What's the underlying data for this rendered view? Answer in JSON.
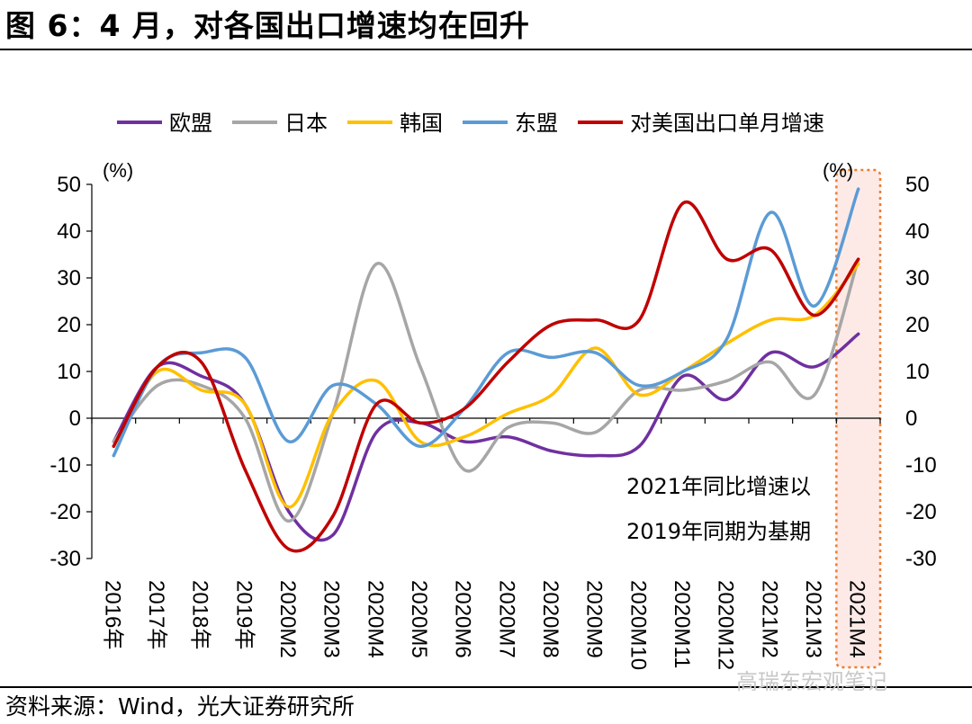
{
  "title": "图 6：4 月，对各国出口增速均在回升",
  "source": "资料来源：Wind，光大证券研究所",
  "watermark": "高瑞东宏观笔记",
  "chart_data": {
    "type": "line",
    "categories": [
      "2016年",
      "2017年",
      "2018年",
      "2019年",
      "2020M2",
      "2020M3",
      "2020M4",
      "2020M5",
      "2020M6",
      "2020M7",
      "2020M8",
      "2020M9",
      "2020M10",
      "2020M11",
      "2020M12",
      "2021M2",
      "2021M3",
      "2021M4"
    ],
    "series": [
      {
        "name": "欧盟",
        "color": "#7030a0",
        "values": [
          -5,
          11,
          9,
          3,
          -20,
          -25,
          -3,
          -1,
          -5,
          -4,
          -7,
          -8,
          -6,
          9,
          4,
          14,
          11,
          18
        ]
      },
      {
        "name": "日本",
        "color": "#a6a6a6",
        "values": [
          -5,
          7,
          7,
          0,
          -22,
          1,
          33,
          11,
          -11,
          -2,
          -1,
          -3,
          6,
          6,
          8,
          12,
          5,
          34
        ]
      },
      {
        "name": "韩国",
        "color": "#ffc000",
        "values": [
          -6,
          10,
          6,
          3,
          -19,
          1,
          8,
          -5,
          -4,
          1,
          5,
          15,
          5,
          10,
          16,
          21,
          22,
          33
        ]
      },
      {
        "name": "东盟",
        "color": "#5b9bd5",
        "values": [
          -8,
          11,
          14,
          13,
          -5,
          7,
          3,
          -6,
          2,
          14,
          13,
          14,
          7,
          10,
          17,
          44,
          24,
          49
        ]
      },
      {
        "name": "对美国出口单月增速",
        "color": "#c00000",
        "values": [
          -6,
          11,
          12,
          -11,
          -28,
          -21,
          3,
          -1,
          2,
          12,
          20,
          21,
          21,
          46,
          34,
          36,
          22,
          34
        ]
      }
    ],
    "ylim": [
      -30,
      50
    ],
    "yticks": [
      "50",
      "40",
      "30",
      "20",
      "10",
      "0",
      "-10",
      "-20",
      "-30"
    ],
    "left_unit": "(%)",
    "right_unit": "(%)",
    "annotation_lines": [
      "2021年同比增速以",
      "2019年同期为基期"
    ],
    "highlight_category": "2021M4",
    "legend_position": "top"
  }
}
